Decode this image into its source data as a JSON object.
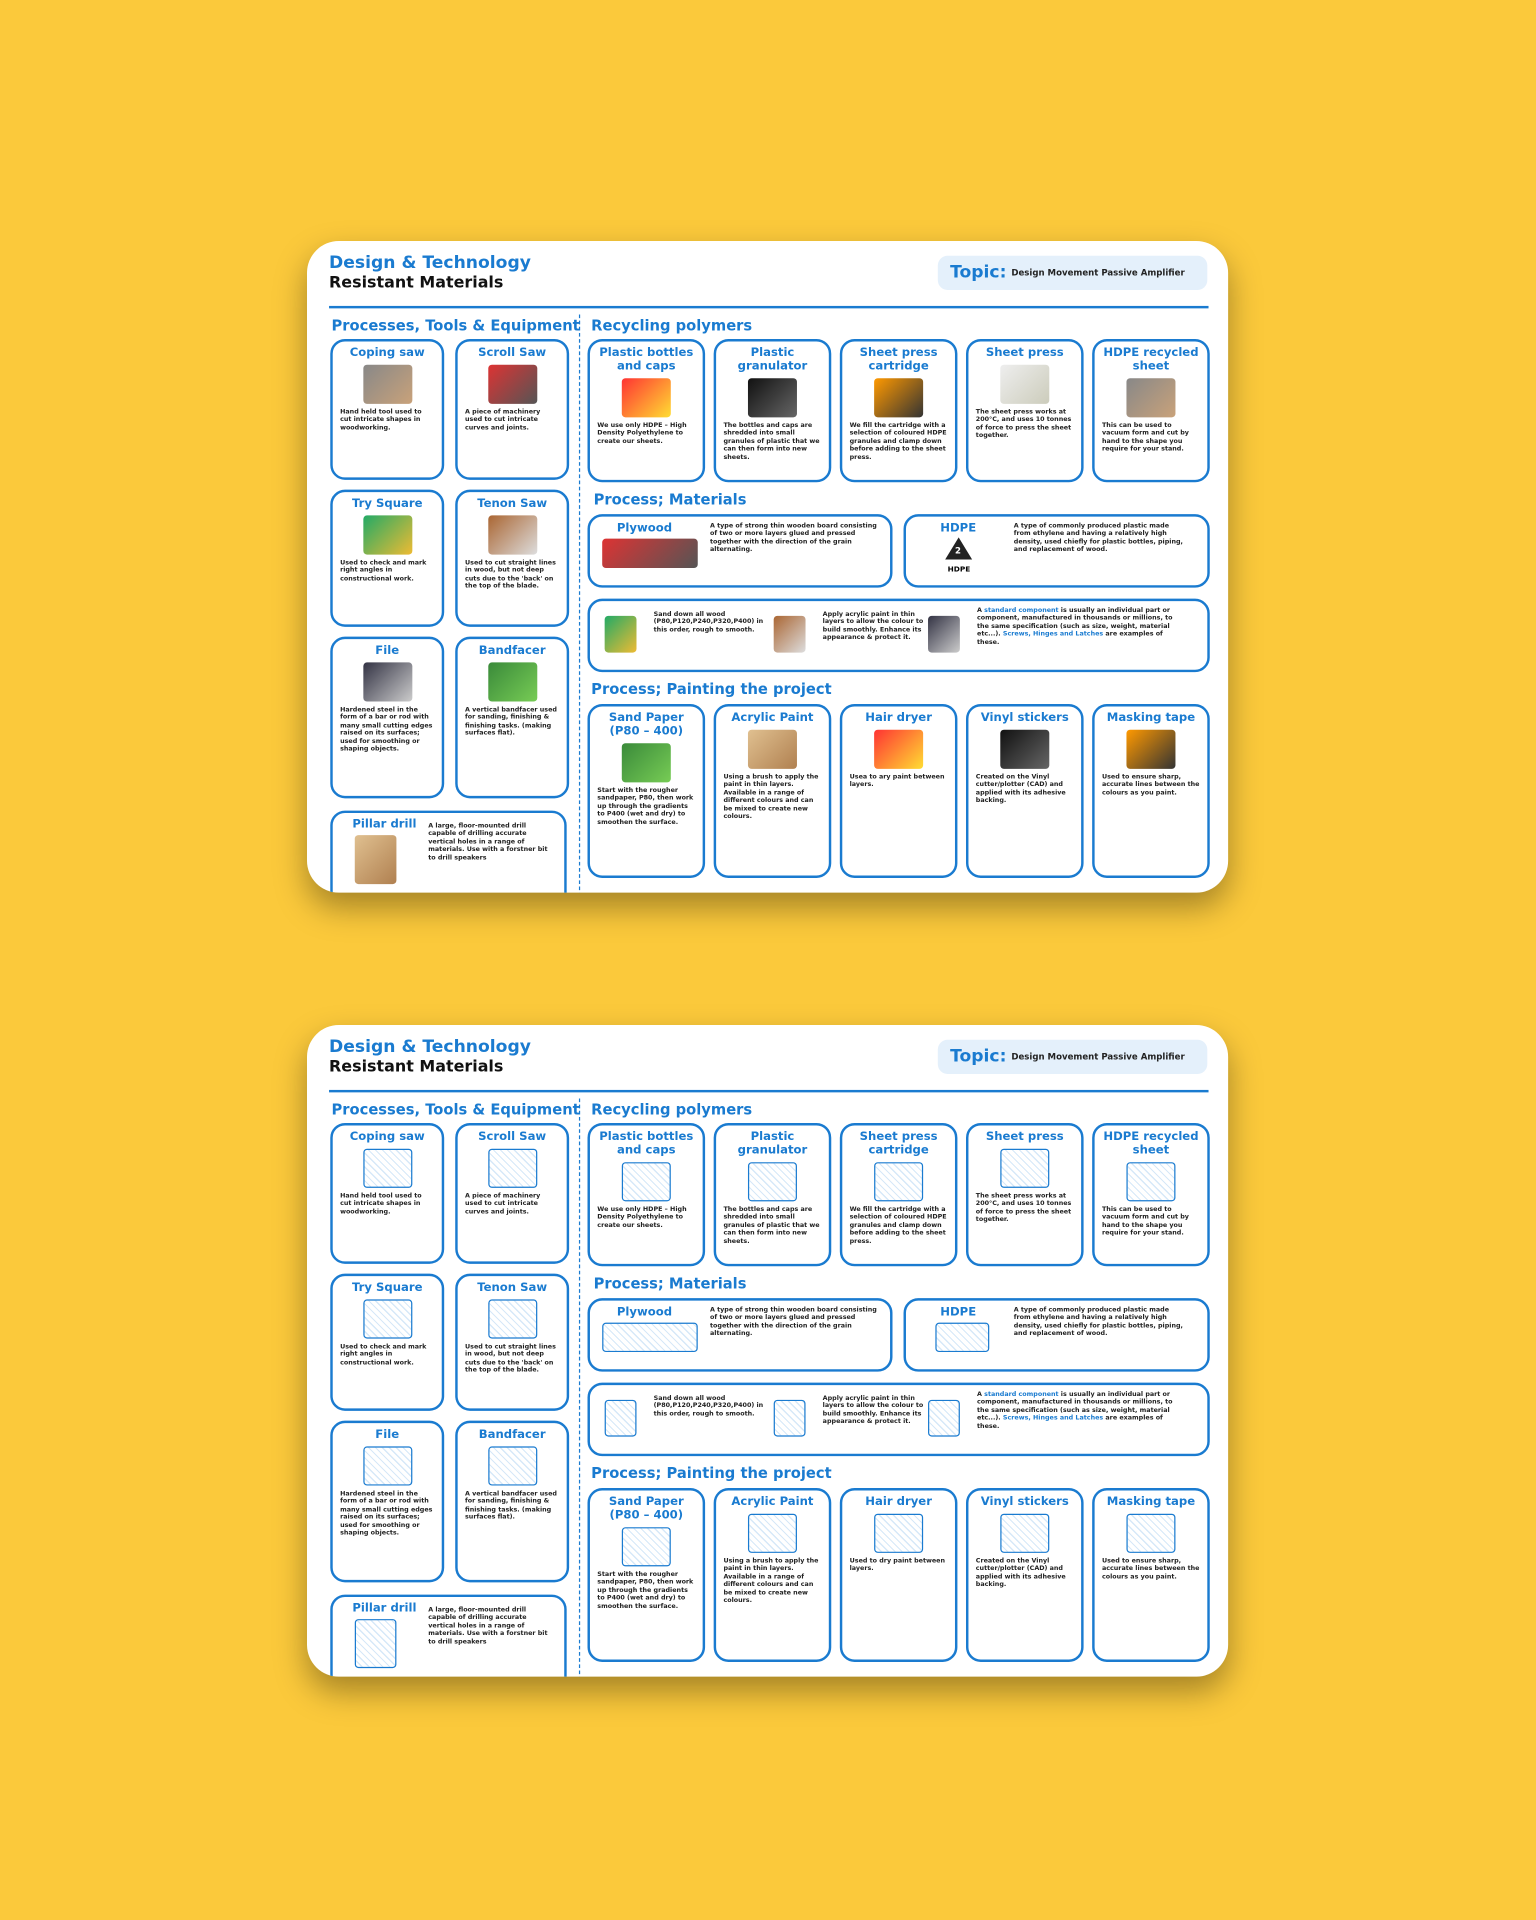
{
  "cards": [
    {
      "header": {
        "subject": "Design & Technology",
        "course": "Resistant Materials"
      },
      "topic": {
        "label": "Topic:",
        "value": "Design Movement Passive Amplifier"
      },
      "tools": {
        "title": "Processes, Tools & Equipment",
        "items": [
          {
            "title": "Coping saw",
            "text": "Hand held tool used to cut intricate shapes in woodworking."
          },
          {
            "title": "Scroll Saw",
            "text": "A piece of machinery used to cut intricate curves and joints."
          },
          {
            "title": "Try Square",
            "text": "Used to check and mark right angles in constructional work."
          },
          {
            "title": "Tenon Saw",
            "text": "Used to cut straight lines in wood, but not deep cuts due to the 'back' on the top of the blade."
          },
          {
            "title": "File",
            "text": "Hardened steel in the form of a bar or rod with many small cutting edges raised on its surfaces; used for smoothing or shaping objects."
          },
          {
            "title": "Bandfacer",
            "text": "A vertical bandfacer used for sanding, finishing & finishing tasks. (making surfaces flat)."
          },
          {
            "title": "Pillar drill",
            "text": "A large, floor-mounted drill capable of drilling accurate vertical holes in a range of materials. Use with a forstner bit to drill speakers"
          }
        ]
      },
      "recycling": {
        "title": "Recycling polymers",
        "items": [
          {
            "title": "Plastic bottles and caps",
            "text": "We use only HDPE – High Density Polyethylene to create our sheets."
          },
          {
            "title": "Plastic granulator",
            "text": "The bottles and caps are shredded into small granules of plastic that we can then form into new sheets."
          },
          {
            "title": "Sheet press cartridge",
            "text": "We fill the cartridge with a selection of coloured HDPE granules and clamp down before adding to the sheet press."
          },
          {
            "title": "Sheet press",
            "text": "The sheet press works at 200°C, and uses 10 tonnes of force to press the sheet together."
          },
          {
            "title": "HDPE recycled sheet",
            "text": "This can be used to vacuum form and cut by hand to the shape you require for your stand."
          }
        ]
      },
      "materials": {
        "title": "Process; Materials",
        "items": [
          {
            "title": "Plywood",
            "text": "A type of strong thin wooden board consisting of two or more layers glued and pressed together with the direction of the grain alternating."
          },
          {
            "title": "HDPE",
            "text": "A type of commonly produced plastic made from ethylene and having a relatively high density, used chiefly for plastic bottles, piping, and replacement of wood.",
            "badge": {
              "code": "2",
              "label": "HDPE"
            }
          }
        ]
      },
      "tips": [
        {
          "parts": [
            {
              "text": "Sand down all wood (P80,P120,P240,P320,P400) in this order, rough to smooth."
            }
          ]
        },
        {
          "parts": [
            {
              "text": "Apply acrylic paint in thin layers to allow the colour to build smoothly. Enhance its appearance & protect it."
            }
          ]
        },
        {
          "parts": [
            {
              "text": "A "
            },
            {
              "text": "standard component",
              "highlight": true
            },
            {
              "text": " is usually an individual part or component, manufactured in thousands or millions, to the same specification (such as size, weight, material etc...). "
            },
            {
              "text": "Screws, Hinges and Latches",
              "highlight": true
            },
            {
              "text": " are examples of these."
            }
          ]
        }
      ],
      "painting": {
        "title": "Process; Painting the project",
        "items": [
          {
            "title": "Sand Paper (P80 – 400)",
            "text": "Start with the rougher sandpaper, P80, then work up through the gradients to P400 (wet and dry) to smoothen the surface."
          },
          {
            "title": "Acrylic Paint",
            "text": "Using a brush to apply the paint in thin layers. Available in a range of different colours and can be mixed to create new colours."
          },
          {
            "title": "Hair dryer",
            "text": "Usea to ary paint between layers."
          },
          {
            "title": "Vinyl stickers",
            "text": "Created on the Vinyl cutter/plotter (CAD) and applied with its adhesive backing."
          },
          {
            "title": "Masking tape",
            "text": "Used to ensure sharp, accurate lines between the colours as you paint."
          }
        ]
      }
    },
    {
      "header": {
        "subject": "Design & Technology",
        "course": "Resistant Materials"
      },
      "topic": {
        "label": "Topic:",
        "value": "Design Movement Passive Amplifier"
      },
      "tools": {
        "title": "Processes, Tools & Equipment",
        "items": [
          {
            "title": "Coping saw",
            "text": "Hand held tool used to cut intricate shapes in woodworking."
          },
          {
            "title": "Scroll Saw",
            "text": "A piece of machinery used to cut intricate curves and joints."
          },
          {
            "title": "Try Square",
            "text": "Used to check and mark right angles in constructional work."
          },
          {
            "title": "Tenon Saw",
            "text": "Used to cut straight lines in wood, but not deep cuts due to the 'back' on the top of the blade."
          },
          {
            "title": "File",
            "text": "Hardened steel in the form of a bar or rod with many small cutting edges raised on its surfaces; used for smoothing or shaping objects."
          },
          {
            "title": "Bandfacer",
            "text": "A vertical bandfacer used for sanding, finishing & finishing tasks. (making surfaces flat)."
          },
          {
            "title": "Pillar drill",
            "text": "A large, floor-mounted drill capable of drilling accurate vertical holes in a range of materials. Use with a forstner bit to drill speakers"
          }
        ]
      },
      "recycling": {
        "title": "Recycling polymers",
        "items": [
          {
            "title": "Plastic bottles and caps",
            "text": "We use only HDPE – High Density Polyethylene to create our sheets."
          },
          {
            "title": "Plastic granulator",
            "text": "The bottles and caps are shredded into small granules of plastic that we can then form into new sheets."
          },
          {
            "title": "Sheet press cartridge",
            "text": "We fill the cartridge with a selection of coloured HDPE granules and clamp down before adding to the sheet press."
          },
          {
            "title": "Sheet press",
            "text": "The sheet press works at 200°C, and uses 10 tonnes of force to press the sheet together."
          },
          {
            "title": "HDPE recycled sheet",
            "text": "This can be used to vacuum form and cut by hand to the shape you require for your stand."
          }
        ]
      },
      "materials": {
        "title": "Process; Materials",
        "items": [
          {
            "title": "Plywood",
            "text": "A type of strong thin wooden board consisting of two or more layers glued and pressed together with the direction of the grain alternating."
          },
          {
            "title": "HDPE",
            "text": "A type of commonly produced plastic made from ethylene and having a relatively high density, used chiefly for plastic bottles, piping, and replacement of wood."
          }
        ]
      },
      "tips": [
        {
          "parts": [
            {
              "text": "Sand down all wood (P80,P120,P240,P320,P400) in this order, rough to smooth."
            }
          ]
        },
        {
          "parts": [
            {
              "text": "Apply acrylic paint in thin layers to allow the colour to build smoothly. Enhance its appearance & protect it."
            }
          ]
        },
        {
          "parts": [
            {
              "text": "A "
            },
            {
              "text": "standard component",
              "highlight": true
            },
            {
              "text": " is usually an individual part or component, manufactured in thousands or millions, to the same specification (such as size, weight, material etc...). "
            },
            {
              "text": "Screws, Hinges and Latches",
              "highlight": true
            },
            {
              "text": " are examples of these."
            }
          ]
        }
      ],
      "painting": {
        "title": "Process; Painting the project",
        "items": [
          {
            "title": "Sand Paper (P80 – 400)",
            "text": "Start with the rougher sandpaper, P80, then work up through the gradients to P400 (wet and dry) to smoothen the surface."
          },
          {
            "title": "Acrylic Paint",
            "text": "Using a brush to apply the paint in thin layers. Available in a range of different colours and can be mixed to create new colours."
          },
          {
            "title": "Hair dryer",
            "text": "Used to dry paint between layers."
          },
          {
            "title": "Vinyl stickers",
            "text": "Created on the Vinyl cutter/plotter (CAD) and applied with its adhesive backing."
          },
          {
            "title": "Masking tape",
            "text": "Used to ensure sharp, accurate lines between the colours as you paint."
          }
        ]
      }
    }
  ]
}
